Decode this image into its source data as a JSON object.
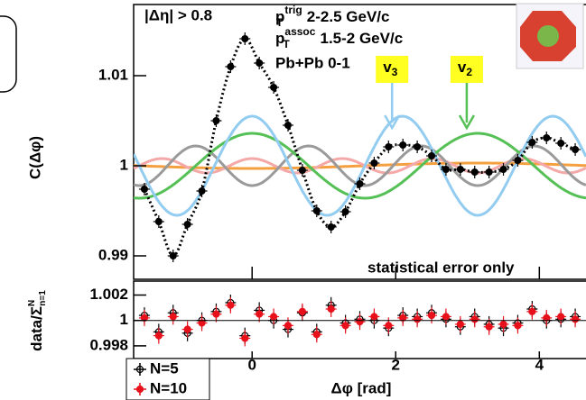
{
  "chart_data": [
    {
      "type": "scatter",
      "y_label": "C(Δφ)",
      "labels": [
        "|Δη| > 0.8"
      ],
      "kinematics": [
        {
          "symbol": "p",
          "sub": "T",
          "sup": "trig",
          "text": " 2-2.5 GeV/c"
        },
        {
          "symbol": "p",
          "sub": "T",
          "sup": "assoc",
          "text": " 1.5-2 GeV/c"
        }
      ],
      "system": "Pb+Pb 0-1",
      "note": "statistical error only",
      "x": [
        -1.5,
        -1.3,
        -1.1,
        -0.9,
        -0.7,
        -0.5,
        -0.3,
        -0.1,
        0.1,
        0.3,
        0.5,
        0.7,
        0.9,
        1.1,
        1.3,
        1.5,
        1.7,
        1.9,
        2.1,
        2.3,
        2.5,
        2.7,
        2.9,
        3.1,
        3.3,
        3.5,
        3.7,
        3.9,
        4.1,
        4.3,
        4.5
      ],
      "series": [
        {
          "color": "#000000",
          "values": [
            0.9974,
            0.9938,
            0.99,
            0.9935,
            0.9972,
            1.005,
            1.011,
            1.0141,
            1.0114,
            1.0087,
            1.0045,
            0.9995,
            0.995,
            0.9932,
            0.9949,
            0.998,
            1.0003,
            1.0021,
            1.0023,
            1.0021,
            1.0011,
            0.9996,
            0.9996,
            0.9993,
            0.9993,
            0.9996,
            1.0006,
            1.0026,
            1.0031,
            1.0025,
            1.0018
          ]
        }
      ],
      "harmonics": [
        {
          "n": 1,
          "amplitude": -0.0003,
          "color": "#f5a040"
        },
        {
          "n": 5,
          "amplitude": 0.0008,
          "color": "#f4a8a8"
        },
        {
          "n": 4,
          "amplitude": -0.0022,
          "color": "#9a9a9a"
        },
        {
          "n": 2,
          "amplitude": 0.0036,
          "color": "#55c055"
        },
        {
          "n": 3,
          "amplitude": 0.0055,
          "color": "#92ccf0"
        }
      ],
      "annotations": [
        {
          "text": "v",
          "sub": "3",
          "x": 2.1,
          "color": "#92ccf0"
        },
        {
          "text": "v",
          "sub": "2",
          "x": 3.14,
          "color": "#55c055"
        }
      ],
      "xlim": [
        -1.65,
        4.65
      ],
      "xticks": [
        0,
        2,
        4
      ],
      "ylim": [
        0.9874,
        1.0179
      ],
      "yticks": [
        0.99,
        1,
        1.01
      ]
    },
    {
      "type": "scatter",
      "y_label": {
        "text": "data/Σ",
        "sub": "n=1",
        "sup": "N"
      },
      "x_label": "Δφ [rad]",
      "x": [
        -1.5,
        -1.3,
        -1.1,
        -0.9,
        -0.7,
        -0.5,
        -0.3,
        -0.1,
        0.1,
        0.3,
        0.5,
        0.7,
        0.9,
        1.1,
        1.3,
        1.5,
        1.7,
        1.9,
        2.1,
        2.3,
        2.5,
        2.7,
        2.9,
        3.1,
        3.3,
        3.5,
        3.7,
        3.9,
        4.1,
        4.3,
        4.5
      ],
      "series": [
        {
          "name": "N=5",
          "color": "#000000",
          "marker": "open",
          "values": [
            1.0004,
            0.9991,
            1.0006,
            0.999,
            1.0,
            1.0007,
            1.0014,
            0.9988,
            1.0008,
            1.0,
            0.9993,
            1.0006,
            0.9991,
            1.0012,
            0.9998,
            1.0001,
            1.0,
            0.9994,
            1.0004,
            1.0003,
            1.0006,
            1.0001,
            0.9995,
            1.0003,
            0.9997,
            0.9994,
            0.9998,
            1.0009,
            1.0,
            1.0001,
            1.0003
          ]
        },
        {
          "name": "N=10",
          "color": "#e8101a",
          "marker": "filled",
          "values": [
            1.0002,
            0.9988,
            1.0003,
            0.9993,
            0.9998,
            1.0005,
            1.0012,
            0.9986,
            1.0005,
            1.0003,
            0.9996,
            1.0007,
            0.9989,
            1.0009,
            0.9996,
            0.9999,
            1.0003,
            0.9996,
            1.0002,
            1.0001,
            1.0004,
            1.0003,
            0.9997,
            1.0001,
            0.9995,
            0.9997,
            0.9996,
            1.0007,
            1.0002,
            1.0003,
            1.0001
          ]
        }
      ],
      "xlim": [
        -1.65,
        4.65
      ],
      "xticks": [
        0,
        2,
        4
      ],
      "ylim": [
        0.997,
        1.0031
      ],
      "yticks": [
        0.998,
        1,
        1.002
      ]
    }
  ]
}
